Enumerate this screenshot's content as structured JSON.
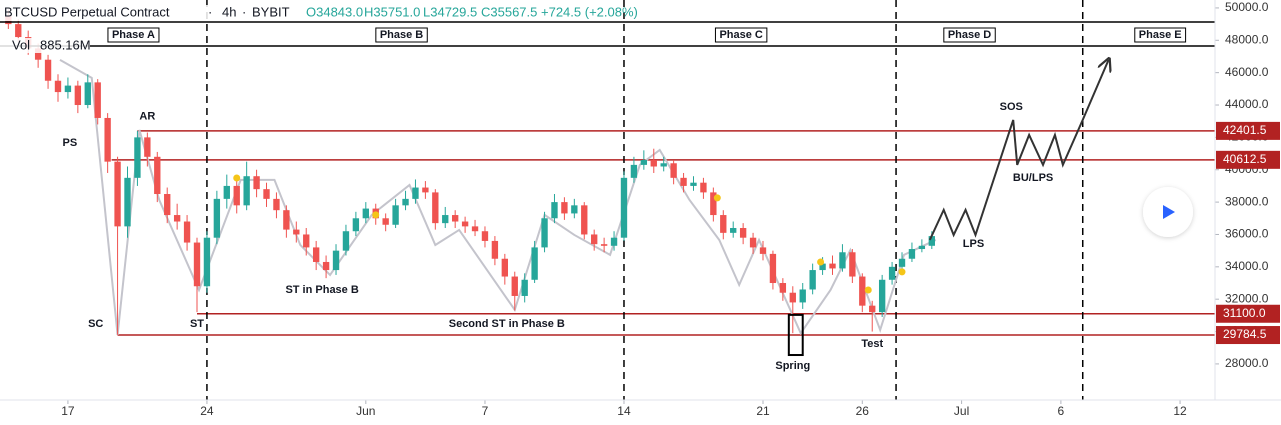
{
  "chart_data": {
    "type": "candlestick",
    "title": "BTCUSD Perpetual Contract",
    "interval": "4h",
    "exchange": "BYBIT",
    "ohlc_text": [
      "O34843.0",
      "H35751.0",
      "L34729.5",
      "C35567.5",
      "+724.5 (+2.08%)"
    ],
    "volume_label": "Vol",
    "volume_value": "885.16M",
    "up_color": "#26a69a",
    "down_color": "#ef5350",
    "x": [
      14,
      14.5,
      15,
      15.5,
      16,
      16.5,
      17,
      17.5,
      18,
      18.5,
      19,
      19.5,
      20,
      20.5,
      21,
      21.5,
      22,
      22.5,
      23,
      23.5,
      24,
      24.5,
      25,
      25.5,
      26,
      26.5,
      27,
      27.5,
      28,
      28.5,
      29,
      29.5,
      30,
      30.5,
      31,
      31.5,
      32,
      32.5,
      33,
      33.5,
      34,
      34.5,
      35,
      35.5,
      36,
      36.5,
      37,
      37.5,
      38,
      38.5,
      39,
      39.5,
      40,
      40.5,
      41,
      41.5,
      42,
      42.5,
      43,
      43.5,
      44,
      44.5,
      45,
      45.5,
      46,
      46.5,
      47,
      47.5,
      48,
      48.5,
      49,
      49.5,
      50,
      50.5,
      51,
      51.5,
      52,
      52.5,
      53,
      53.5,
      54,
      54.5,
      55,
      55.5,
      56,
      56.5,
      57,
      57.5,
      58,
      58.5,
      59,
      59.5,
      60,
      60.5
    ],
    "open": [
      49500,
      49000,
      48200,
      47500,
      46800,
      45500,
      44800,
      45200,
      44000,
      45400,
      43200,
      40500,
      36500,
      39500,
      42000,
      40800,
      38500,
      37200,
      36800,
      35500,
      32800,
      35800,
      38200,
      39000,
      37800,
      39600,
      38800,
      38200,
      37500,
      36300,
      36000,
      35200,
      34300,
      33800,
      35000,
      36200,
      37000,
      37600,
      37000,
      36600,
      37800,
      38200,
      38900,
      38600,
      36700,
      37200,
      36800,
      36500,
      36200,
      35600,
      34500,
      33400,
      32200,
      33200,
      35200,
      37000,
      38000,
      37300,
      37800,
      36000,
      35400,
      35300,
      35800,
      39500,
      40300,
      40600,
      40200,
      40400,
      39500,
      39000,
      39200,
      38600,
      37200,
      36100,
      36400,
      35800,
      35200,
      34800,
      33000,
      32400,
      31800,
      32600,
      33800,
      34200,
      33900,
      34900,
      33400,
      31600,
      31200,
      33200,
      34000,
      34500,
      35100,
      35300
    ],
    "high": [
      49900,
      49300,
      48600,
      47800,
      47100,
      45900,
      45700,
      45500,
      45900,
      45600,
      43500,
      40800,
      40200,
      42400,
      42300,
      41100,
      38900,
      37900,
      37200,
      35800,
      36200,
      38700,
      39700,
      39400,
      40500,
      40000,
      39200,
      38600,
      37800,
      36800,
      36400,
      35600,
      34700,
      35400,
      36600,
      37400,
      38000,
      37900,
      37300,
      38200,
      38700,
      39400,
      39300,
      38800,
      37700,
      37500,
      37100,
      36900,
      36500,
      35900,
      34800,
      33700,
      33600,
      35600,
      37400,
      38500,
      38300,
      38200,
      38000,
      36300,
      35800,
      36200,
      39900,
      40800,
      41200,
      41300,
      40800,
      40600,
      39800,
      39600,
      39500,
      38900,
      37500,
      36800,
      36700,
      36100,
      35600,
      35000,
      33300,
      32800,
      33000,
      34200,
      34600,
      34700,
      35400,
      35100,
      33600,
      31900,
      33500,
      34300,
      34900,
      35500,
      35700,
      36200
    ],
    "low": [
      48700,
      47900,
      47100,
      46300,
      45000,
      44200,
      44400,
      43500,
      43800,
      42800,
      39800,
      29800,
      35800,
      39000,
      40200,
      38000,
      36700,
      36300,
      35000,
      31200,
      32400,
      35400,
      37600,
      37300,
      37500,
      38300,
      37700,
      37000,
      35800,
      35500,
      34700,
      33800,
      33300,
      33500,
      34700,
      35900,
      36700,
      36600,
      36200,
      36400,
      37500,
      37900,
      38200,
      36300,
      36400,
      36400,
      36100,
      35900,
      35200,
      34100,
      32900,
      31300,
      31800,
      33000,
      34900,
      36700,
      36900,
      37000,
      35700,
      35000,
      34900,
      35000,
      35600,
      39200,
      40000,
      39800,
      39900,
      39100,
      38600,
      38700,
      38200,
      36800,
      35700,
      35800,
      35400,
      34800,
      34400,
      32600,
      31900,
      29900,
      31400,
      32300,
      33500,
      33500,
      33700,
      33000,
      31200,
      30000,
      30900,
      32900,
      33700,
      34300,
      34900,
      35100
    ],
    "close": [
      49000,
      48200,
      47500,
      46800,
      45500,
      44800,
      45200,
      44000,
      45400,
      43200,
      40500,
      36500,
      39500,
      42000,
      40800,
      38500,
      37200,
      36800,
      35500,
      32800,
      35800,
      38200,
      39000,
      37800,
      39600,
      38800,
      38200,
      37500,
      36300,
      36000,
      35200,
      34300,
      33800,
      35000,
      36200,
      37000,
      37600,
      37000,
      36600,
      37800,
      38200,
      38900,
      38600,
      36700,
      37200,
      36800,
      36500,
      36200,
      35600,
      34500,
      33400,
      32200,
      33200,
      35200,
      37000,
      38000,
      37300,
      37800,
      36000,
      35400,
      35300,
      35800,
      39500,
      40300,
      40600,
      40200,
      40400,
      39500,
      39000,
      39200,
      38600,
      37200,
      36100,
      36400,
      35800,
      35200,
      34800,
      33000,
      32400,
      31800,
      32600,
      33800,
      34200,
      33900,
      34900,
      33400,
      31600,
      31200,
      33200,
      34000,
      34500,
      35100,
      35300,
      35900
    ],
    "xlim": [
      13.58,
      74.76
    ],
    "xticks": [
      {
        "value": 17,
        "label": "17"
      },
      {
        "value": 24,
        "label": "24"
      },
      {
        "value": 32,
        "label": "Jun"
      },
      {
        "value": 38,
        "label": "7"
      },
      {
        "value": 45,
        "label": "14"
      },
      {
        "value": 52,
        "label": "21"
      },
      {
        "value": 57,
        "label": "26"
      },
      {
        "value": 62,
        "label": "Jul"
      },
      {
        "value": 67,
        "label": "6"
      },
      {
        "value": 73,
        "label": "12"
      }
    ],
    "ylim": [
      25770,
      50490
    ],
    "yticks": [
      {
        "value": 28000,
        "label": "28000.0"
      },
      {
        "value": 30000,
        "label": "30000.0"
      },
      {
        "value": 32000,
        "label": "32000.0"
      },
      {
        "value": 34000,
        "label": "34000.0"
      },
      {
        "value": 36000,
        "label": "36000.0"
      },
      {
        "value": 38000,
        "label": "38000.0"
      },
      {
        "value": 40000,
        "label": "40000.0"
      },
      {
        "value": 42000,
        "label": "42000.0"
      },
      {
        "value": 44000,
        "label": "44000.0"
      },
      {
        "value": 46000,
        "label": "46000.0"
      },
      {
        "value": 48000,
        "label": "48000.0"
      },
      {
        "value": 50000,
        "label": "50000.0"
      }
    ],
    "level_color": "#b22222",
    "levels": [
      {
        "value": 42401.5,
        "label": "42401.5",
        "x_start": 20.5
      },
      {
        "value": 40612.5,
        "label": "40612.5",
        "x_start": 19.2
      },
      {
        "value": 31100,
        "label": "31100.0",
        "x_start": 23.5
      },
      {
        "value": 29784.5,
        "label": "29784.5",
        "x_start": 19.5
      }
    ],
    "phase_lines": [
      24,
      45,
      58.7,
      68.1
    ],
    "phases": [
      {
        "label": "Phase A",
        "x": 20.3
      },
      {
        "label": "Phase B",
        "x": 33.8
      },
      {
        "label": "Phase C",
        "x": 50.9
      },
      {
        "label": "Phase D",
        "x": 62.4
      },
      {
        "label": "Phase E",
        "x": 72
      }
    ],
    "annotations": [
      {
        "text": "PS",
        "x": 17.1,
        "y": 41660
      },
      {
        "text": "AR",
        "x": 21,
        "y": 43270
      },
      {
        "text": "SC",
        "x": 18.4,
        "y": 30470
      },
      {
        "text": "ST",
        "x": 23.5,
        "y": 30470
      },
      {
        "text": "ST in Phase B",
        "x": 29.8,
        "y": 32570
      },
      {
        "text": "Second ST in Phase B",
        "x": 39.1,
        "y": 30470
      },
      {
        "text": "Spring",
        "x": 53.5,
        "y": 27880
      },
      {
        "text": "Test",
        "x": 57.5,
        "y": 29240
      },
      {
        "text": "LPS",
        "x": 62.6,
        "y": 35420
      },
      {
        "text": "SOS",
        "x": 64.5,
        "y": 43880
      },
      {
        "text": "BU/LPS",
        "x": 65.6,
        "y": 39490
      }
    ],
    "marker_color": "#f5c518",
    "markers": {
      "x": [
        25.5,
        32.5,
        49.7,
        54.9,
        57.3,
        59
      ],
      "y": [
        39490,
        37210,
        38260,
        34300,
        32570,
        33690
      ]
    },
    "schematic": {
      "color": "#c4c4cc",
      "x": [
        16.6,
        18.2,
        19.5,
        20.6,
        21.6,
        23.6,
        25.7,
        27.4,
        28.7,
        30.2,
        32.3,
        34.2,
        35.5,
        36.7,
        39.5,
        41,
        42.5,
        44.3,
        45.8,
        46.8,
        48.3,
        49.8,
        50.8,
        51.8,
        53.9,
        55.4,
        56.4,
        57.9,
        59.1,
        60.7
      ],
      "y": [
        46790,
        45680,
        29790,
        42460,
        38130,
        32570,
        39370,
        39370,
        35350,
        33500,
        37210,
        39060,
        35350,
        36280,
        31340,
        37210,
        35970,
        34740,
        40300,
        41220,
        38130,
        35660,
        32880,
        35660,
        29900,
        32570,
        35040,
        30100,
        34740,
        35660
      ]
    },
    "projection": {
      "color": "#333333",
      "x": [
        60.4,
        61.1,
        61.6,
        62.2,
        62.7,
        64.6,
        64.8,
        65.4,
        66.1,
        66.7,
        67.1,
        68.1,
        69.4
      ],
      "y": [
        35660,
        37520,
        35970,
        37520,
        35970,
        43080,
        40300,
        42150,
        40300,
        42150,
        40300,
        43080,
        46790
      ]
    },
    "spring_box": {
      "x": [
        53.3,
        54
      ],
      "y": [
        31030,
        28550
      ]
    }
  }
}
